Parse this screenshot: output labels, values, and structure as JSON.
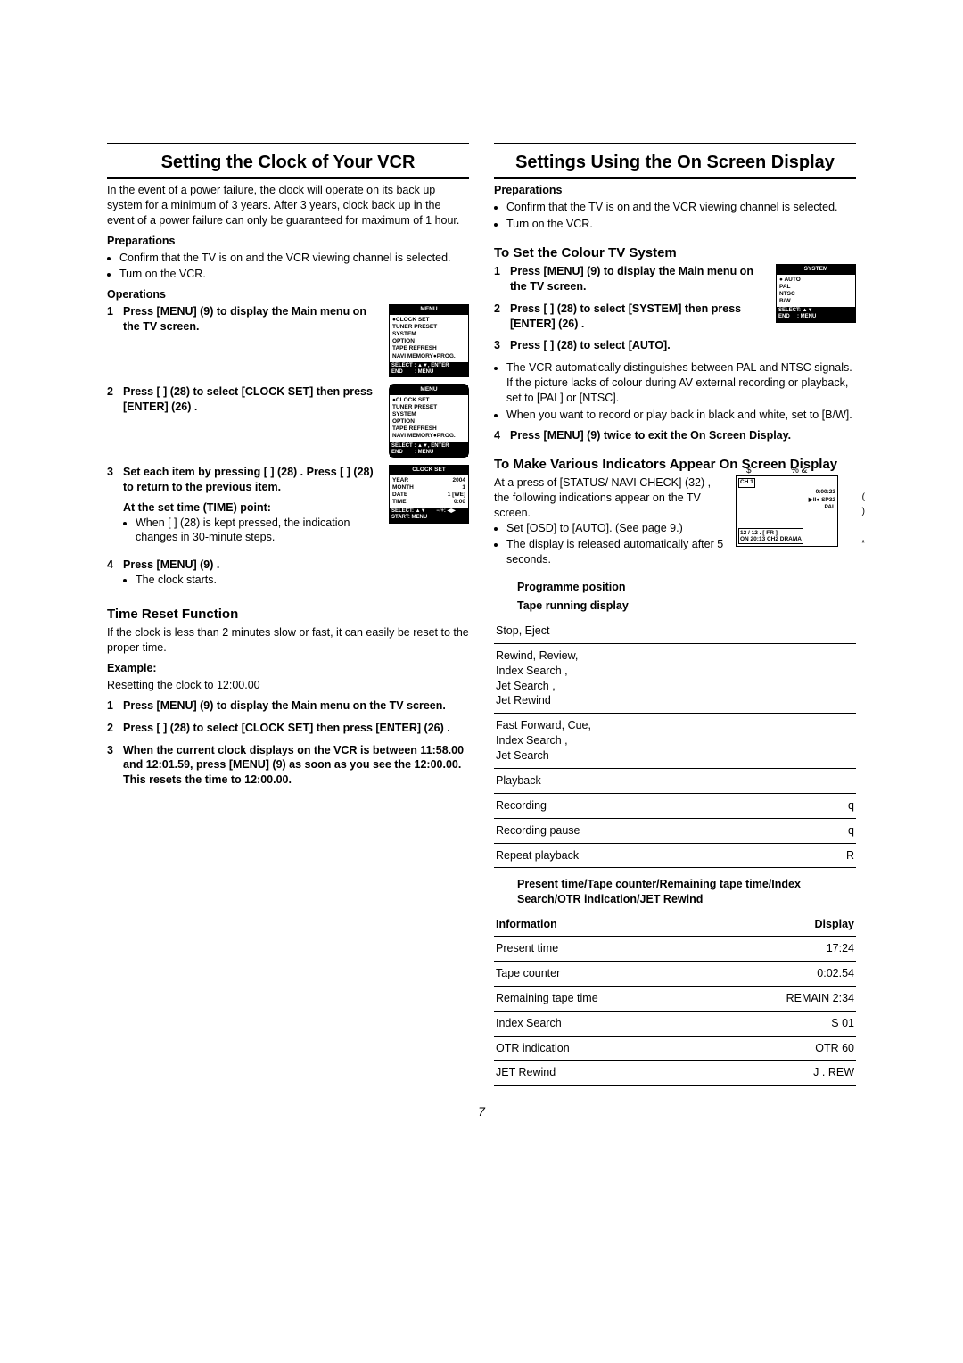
{
  "page_number": "7",
  "left": {
    "title": "Setting the Clock of Your VCR",
    "intro": "In the event of a power failure, the clock will operate on its back up system for a minimum of 3 years. After 3 years, clock back up in the event of a power failure can only be guaranteed for maximum of 1 hour.",
    "preparations_label": "Preparations",
    "prep_items": [
      "Confirm that the TV is on and the VCR viewing channel is selected.",
      "Turn on the VCR."
    ],
    "operations_label": "Operations",
    "step1": "Press [MENU] (9)  to display the Main menu on the TV screen.",
    "step2": "Press [        ] (28)  to select [CLOCK SET] then press [ENTER] (26) .",
    "step3_a": "Set each item by pressing [          ] (28) . Press [    ] (28)  to return to the previous item.",
    "step3_b_label": "At the set time (TIME) point:",
    "step3_b_bullet": "When [         ] (28)  is kept pressed, the indication changes in 30-minute steps.",
    "step4": "Press [MENU] (9) .",
    "step4_bullet": "The clock starts.",
    "time_reset_title": "Time Reset Function",
    "time_reset_intro": "If the clock is less than 2 minutes slow or fast, it can easily be reset to the proper time.",
    "example_label": "Example:",
    "example_text": "Resetting the clock to 12:00.00",
    "tr_step1": "Press [MENU] (9)  to display the Main menu on the TV screen.",
    "tr_step2": "Press [        ] (28)  to select [CLOCK SET] then press [ENTER] (26) .",
    "tr_step3": "When the current clock displays on the VCR is between 11:58.00 and 12:01.59, press [MENU] (9)  as soon as you see the 12:00.00. This resets the time to 12:00.00.",
    "osd_menu": {
      "header": "MENU",
      "items": [
        "●CLOCK SET",
        "  TUNER PRESET",
        "  SYSTEM",
        "  OPTION",
        "  TAPE REFRESH",
        "  NAVI MEMORY●PROG."
      ],
      "footer": "SELECT : ▲▼, ENTER\nEND        : MENU"
    },
    "osd_clockset": {
      "header": "CLOCK  SET",
      "rows": [
        [
          "YEAR",
          "2004"
        ],
        [
          "MONTH",
          "1"
        ],
        [
          "DATE",
          "1 [WE]"
        ],
        [
          "TIME",
          "0:00"
        ]
      ],
      "footer": "SELECT: ▲▼       −/+: ◀▶\nSTART: MENU"
    }
  },
  "right": {
    "title": "Settings Using the On Screen Display",
    "preparations_label": "Preparations",
    "prep_items": [
      "Confirm that the TV is on and the VCR viewing channel is selected.",
      "Turn on the VCR."
    ],
    "colour_title": "To Set the Colour TV System",
    "c_step1": "Press [MENU] (9)  to display the Main menu on the TV screen.",
    "c_step2": "Press [        ] (28)  to select [SYSTEM] then press [ENTER] (26) .",
    "c_step3": "Press [        ] (28)  to  select [AUTO].",
    "c_bullets": [
      "The VCR automatically distinguishes between PAL and NTSC signals. If the picture lacks of colour during AV external recording or playback, set to [PAL] or [NTSC].",
      "When you want to record or play back in black and white, set to [B/W]."
    ],
    "c_step4": "Press [MENU] (9)  twice to exit the On Screen Display.",
    "system_osd": {
      "header": "SYSTEM",
      "items": [
        "● AUTO",
        "  PAL",
        "  NTSC",
        "  B/W"
      ],
      "footer": "SELECT: ▲▼\nEND     : MENU"
    },
    "indicators_title": "To Make Various Indicators Appear On Screen Display",
    "ind_intro": "At a press of [STATUS/ NAVI CHECK] (32) , the following indications appear on the TV screen.",
    "ind_bullets": [
      "Set [OSD] to [AUTO]. (See page 9.)",
      "The display is released automatically after 5 seconds."
    ],
    "prog_pos_label": "Programme position",
    "tape_running_label": "Tape running display",
    "screen_overlay": {
      "ch": "CH 1",
      "time": "0:00:23",
      "track1": "▶II● SP32",
      "track2": "PAL",
      "bottom1": "12 / 12 .   [  FR  ]",
      "bottom2": "ON  20:13  CH2    DRAMA",
      "marks": {
        "a": "$",
        "b": "% &",
        "c": "'",
        "d": "(",
        "e": ")",
        "f": "*"
      }
    },
    "running_rows": [
      {
        "label": "Stop, Eject",
        "disp": ""
      },
      {
        "label": "Rewind, Review,\nIndex Search          ,\nJet Search             ,\nJet Rewind",
        "disp": ""
      },
      {
        "label": "Fast Forward, Cue,\nIndex Search          ,\nJet Search",
        "disp": ""
      },
      {
        "label": "Playback",
        "disp": ""
      },
      {
        "label": "Recording",
        "disp": "q"
      },
      {
        "label": "Recording pause",
        "disp": "q"
      },
      {
        "label": "Repeat playback",
        "disp": "R"
      }
    ],
    "present_label": "Present time/Tape counter/Remaining tape time/Index Search/OTR indication/JET Rewind",
    "info_table": {
      "head": [
        "Information",
        "Display"
      ],
      "rows": [
        [
          "Present time",
          "17:24"
        ],
        [
          "Tape counter",
          "0:02.54"
        ],
        [
          "Remaining tape time",
          "REMAIN 2:34"
        ],
        [
          "Index Search",
          "S 01"
        ],
        [
          "OTR indication",
          "OTR 60"
        ],
        [
          "JET Rewind",
          "J . REW"
        ]
      ]
    }
  }
}
